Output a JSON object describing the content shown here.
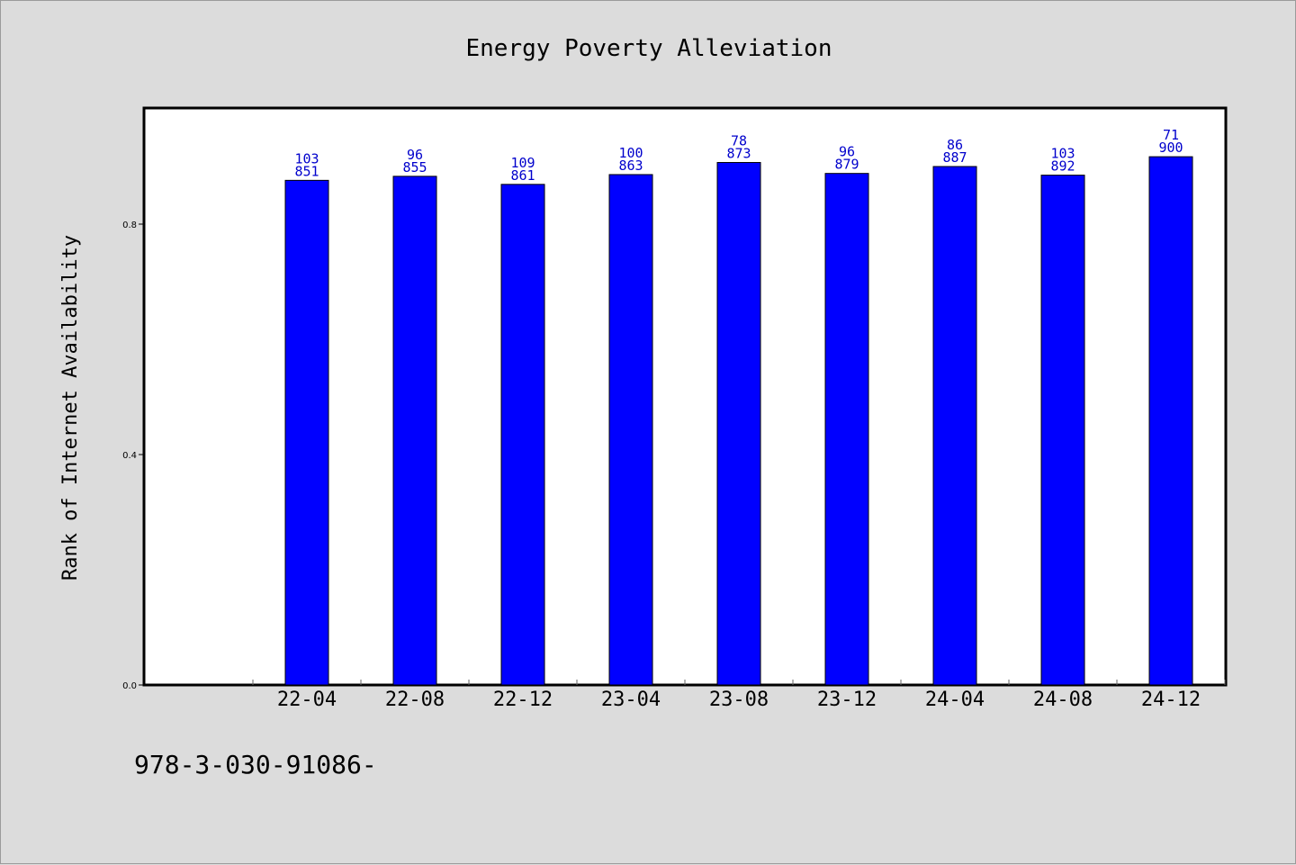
{
  "footer": {
    "text": "978-3-030-91086-"
  },
  "colors": {
    "bar": "#0000ff",
    "data_label": "#0000cc",
    "plot_bg": "#ffffff",
    "page_bg": "#dcdcdc"
  },
  "chart_data": {
    "type": "bar",
    "title": "Energy Poverty Alleviation",
    "xlabel": "",
    "ylabel": "Rank of Internet Availability",
    "ylim": [
      0.0,
      1.0
    ],
    "yticks": [
      0.0,
      0.4,
      0.8
    ],
    "ytick_labels": [
      "0.0",
      "0.4",
      "0.8"
    ],
    "grid": false,
    "categories": [
      "22-04",
      "22-08",
      "22-12",
      "23-04",
      "23-08",
      "23-12",
      "24-04",
      "24-08",
      "24-12"
    ],
    "values": [
      0.876,
      0.883,
      0.869,
      0.886,
      0.907,
      0.888,
      0.9,
      0.885,
      0.917
    ],
    "data_labels": [
      [
        "103",
        "851"
      ],
      [
        "96",
        "855"
      ],
      [
        "109",
        "861"
      ],
      [
        "100",
        "863"
      ],
      [
        "78",
        "873"
      ],
      [
        "96",
        "879"
      ],
      [
        "86",
        "887"
      ],
      [
        "103",
        "892"
      ],
      [
        "71",
        "900"
      ]
    ]
  }
}
